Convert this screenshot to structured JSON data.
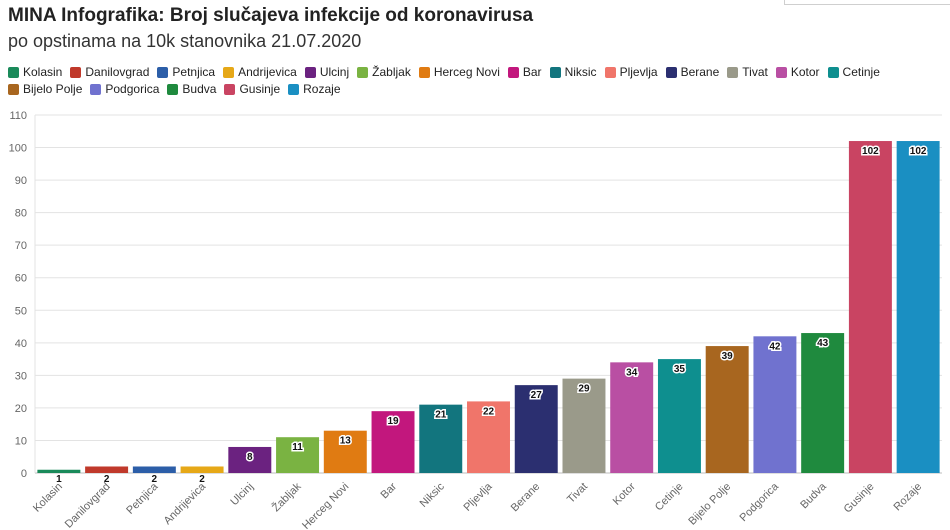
{
  "title": "MINA Infografika: Broj slučajeva infekcije od koronavirusa",
  "subtitle": "po opstinama na 10k stanovnika 21.07.2020",
  "chart_data": {
    "type": "bar",
    "title": "MINA Infografika: Broj slučajeva infekcije od koronavirusa",
    "subtitle": "po opstinama na 10k stanovnika 21.07.2020",
    "xlabel": "",
    "ylabel": "",
    "ylim": [
      0,
      110
    ],
    "yticks": [
      "0",
      "10",
      "20",
      "30",
      "40",
      "50",
      "60",
      "70",
      "80",
      "90",
      "100",
      "110"
    ],
    "grid": true,
    "legend_position": "top",
    "categories": [
      "Kolasin",
      "Danilovgrad",
      "Petnjica",
      "Andrijevica",
      "Ulcinj",
      "Žabljak",
      "Herceg Novi",
      "Bar",
      "Niksic",
      "Pljevlja",
      "Berane",
      "Tivat",
      "Kotor",
      "Cetinje",
      "Bijelo Polje",
      "Podgorica",
      "Budva",
      "Gusinje",
      "Rozaje"
    ],
    "values": [
      1,
      2,
      2,
      2,
      8,
      11,
      13,
      19,
      21,
      22,
      27,
      29,
      34,
      35,
      39,
      42,
      43,
      102,
      102
    ],
    "value_labels": [
      "1",
      "2",
      "2",
      "2",
      "8",
      "11",
      "13",
      "19",
      "21",
      "22",
      "27",
      "29",
      "34",
      "35",
      "39",
      "42",
      "43",
      "102",
      "102"
    ],
    "colors": [
      "#1a8a5a",
      "#c0392b",
      "#2c5ea8",
      "#e6a817",
      "#6b2280",
      "#7ab342",
      "#e07b12",
      "#c2177d",
      "#12757e",
      "#f0756a",
      "#2b2f70",
      "#9a9a8a",
      "#b94fa3",
      "#0e8f8f",
      "#a8661f",
      "#7072cf",
      "#1f8a3e",
      "#c94462",
      "#1a8fc2"
    ]
  }
}
